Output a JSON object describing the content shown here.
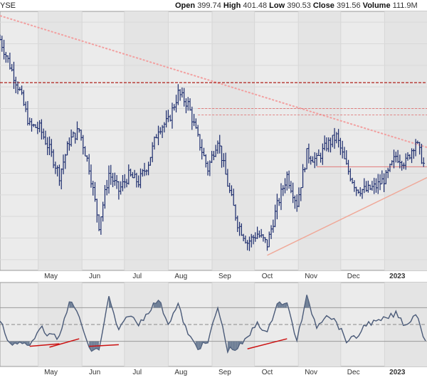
{
  "header": {
    "exchange": "YSE",
    "open_label": "Open",
    "open_value": "399.74",
    "high_label": "High",
    "high_value": "401.48",
    "low_label": "Low",
    "low_value": "390.53",
    "close_label": "Close",
    "close_value": "391.56",
    "volume_label": "Volume",
    "volume_value": "111.9M"
  },
  "colors": {
    "panel_bg": "#ebebeb",
    "alt_band": "#e4e4e4",
    "bar": "#1a2a6c",
    "downtrend": "#f2a0a0",
    "resistance": "#b0201a",
    "levels": "#e07a7a",
    "uptrend": "#f0a898",
    "indicator_line": "#4a5a78",
    "indicator_fill": "#5c6f8a",
    "divergence": "#cc1111"
  },
  "chart_data": [
    {
      "type": "ohlc",
      "x_tick_labels": [
        "May",
        "Jun",
        "Jul",
        "Aug",
        "Sep",
        "Oct",
        "Nov",
        "Dec",
        "2023"
      ],
      "x_range": [
        "2022-04-04",
        "2023-01-31"
      ],
      "grid": true,
      "closes": [
        {
          "date": "2022-04-04",
          "close": 452
        },
        {
          "date": "2022-04-11",
          "close": 440
        },
        {
          "date": "2022-04-18",
          "close": 428
        },
        {
          "date": "2022-04-25",
          "close": 412
        },
        {
          "date": "2022-05-02",
          "close": 411
        },
        {
          "date": "2022-05-09",
          "close": 401
        },
        {
          "date": "2022-05-16",
          "close": 389
        },
        {
          "date": "2022-05-23",
          "close": 405
        },
        {
          "date": "2022-05-30",
          "close": 410
        },
        {
          "date": "2022-06-06",
          "close": 393
        },
        {
          "date": "2022-06-13",
          "close": 366
        },
        {
          "date": "2022-06-20",
          "close": 390
        },
        {
          "date": "2022-06-27",
          "close": 382
        },
        {
          "date": "2022-07-04",
          "close": 389
        },
        {
          "date": "2022-07-11",
          "close": 386
        },
        {
          "date": "2022-07-18",
          "close": 395
        },
        {
          "date": "2022-07-25",
          "close": 411
        },
        {
          "date": "2022-08-01",
          "close": 414
        },
        {
          "date": "2022-08-08",
          "close": 427
        },
        {
          "date": "2022-08-15",
          "close": 422
        },
        {
          "date": "2022-08-22",
          "close": 406
        },
        {
          "date": "2022-08-29",
          "close": 392
        },
        {
          "date": "2022-09-05",
          "close": 406
        },
        {
          "date": "2022-09-12",
          "close": 385
        },
        {
          "date": "2022-09-19",
          "close": 367
        },
        {
          "date": "2022-09-26",
          "close": 358
        },
        {
          "date": "2022-10-03",
          "close": 362
        },
        {
          "date": "2022-10-10",
          "close": 357
        },
        {
          "date": "2022-10-17",
          "close": 375
        },
        {
          "date": "2022-10-24",
          "close": 389
        },
        {
          "date": "2022-10-31",
          "close": 376
        },
        {
          "date": "2022-11-07",
          "close": 399
        },
        {
          "date": "2022-11-14",
          "close": 396
        },
        {
          "date": "2022-11-21",
          "close": 403
        },
        {
          "date": "2022-11-28",
          "close": 407
        },
        {
          "date": "2022-12-05",
          "close": 393
        },
        {
          "date": "2022-12-12",
          "close": 383
        },
        {
          "date": "2022-12-19",
          "close": 382
        },
        {
          "date": "2022-12-26",
          "close": 384
        },
        {
          "date": "2023-01-02",
          "close": 388
        },
        {
          "date": "2023-01-09",
          "close": 398
        },
        {
          "date": "2023-01-16",
          "close": 395
        },
        {
          "date": "2023-01-23",
          "close": 405
        },
        {
          "date": "2023-01-30",
          "close": 391.56
        }
      ]
    },
    {
      "type": "line",
      "x_tick_labels": [
        "May",
        "Jun",
        "Jul",
        "Aug",
        "Sep",
        "Oct",
        "Nov",
        "Dec",
        "2023"
      ],
      "reference_lines": [
        70,
        50,
        30
      ],
      "grid": true
    }
  ]
}
